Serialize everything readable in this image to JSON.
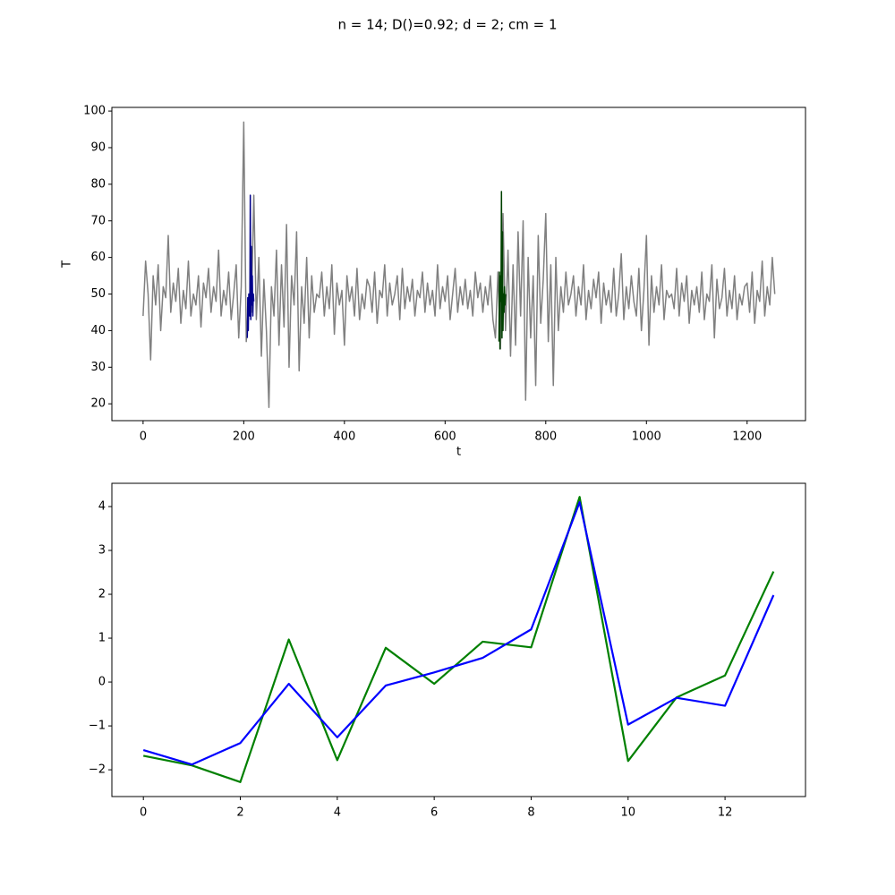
{
  "title": "n = 14; D()=0.92; d = 2; cm = 1",
  "chart_data": [
    {
      "type": "line",
      "xlabel": "t",
      "ylabel": "T",
      "xlim": [
        -62,
        1316
      ],
      "ylim": [
        15.4,
        101
      ],
      "xticks": [
        0,
        200,
        400,
        600,
        800,
        1000,
        1200
      ],
      "yticks": [
        20,
        30,
        40,
        50,
        60,
        70,
        80,
        90,
        100
      ],
      "series": [
        {
          "color": "#808080",
          "x": [
            0,
            5,
            10,
            15,
            20,
            25,
            30,
            35,
            40,
            45,
            50,
            55,
            60,
            65,
            70,
            75,
            80,
            85,
            90,
            95,
            100,
            105,
            110,
            115,
            120,
            125,
            130,
            135,
            140,
            145,
            150,
            155,
            160,
            165,
            170,
            175,
            180,
            185,
            190,
            195,
            200,
            205,
            210,
            215,
            220,
            225,
            230,
            235,
            240,
            245,
            250,
            255,
            260,
            265,
            270,
            275,
            280,
            285,
            290,
            295,
            300,
            305,
            310,
            315,
            320,
            325,
            330,
            335,
            340,
            345,
            350,
            355,
            360,
            365,
            370,
            375,
            380,
            385,
            390,
            395,
            400,
            405,
            410,
            415,
            420,
            425,
            430,
            435,
            440,
            445,
            450,
            455,
            460,
            465,
            470,
            475,
            480,
            485,
            490,
            495,
            500,
            505,
            510,
            515,
            520,
            525,
            530,
            535,
            540,
            545,
            550,
            555,
            560,
            565,
            570,
            575,
            580,
            585,
            590,
            595,
            600,
            605,
            610,
            615,
            620,
            625,
            630,
            635,
            640,
            645,
            650,
            655,
            660,
            665,
            670,
            675,
            680,
            685,
            690,
            695,
            700,
            705,
            710,
            715,
            720,
            725,
            730,
            735,
            740,
            745,
            750,
            755,
            760,
            765,
            770,
            775,
            780,
            785,
            790,
            795,
            800,
            805,
            810,
            815,
            820,
            825,
            830,
            835,
            840,
            845,
            850,
            855,
            860,
            865,
            870,
            875,
            880,
            885,
            890,
            895,
            900,
            905,
            910,
            915,
            920,
            925,
            930,
            935,
            940,
            945,
            950,
            955,
            960,
            965,
            970,
            975,
            980,
            985,
            990,
            995,
            1000,
            1005,
            1010,
            1015,
            1020,
            1025,
            1030,
            1035,
            1040,
            1045,
            1050,
            1055,
            1060,
            1065,
            1070,
            1075,
            1080,
            1085,
            1090,
            1095,
            1100,
            1105,
            1110,
            1115,
            1120,
            1125,
            1130,
            1135,
            1140,
            1145,
            1150,
            1155,
            1160,
            1165,
            1170,
            1175,
            1180,
            1185,
            1190,
            1195,
            1200,
            1205,
            1210,
            1215,
            1220,
            1225,
            1230,
            1235,
            1240,
            1245,
            1250,
            1255
          ],
          "values": [
            44,
            59,
            50,
            32,
            55,
            47,
            58,
            40,
            52,
            49,
            66,
            45,
            53,
            48,
            57,
            42,
            51,
            46,
            59,
            44,
            50,
            47,
            55,
            41,
            53,
            49,
            57,
            45,
            52,
            48,
            62,
            44,
            51,
            47,
            56,
            43,
            50,
            58,
            38,
            52,
            97,
            37,
            49,
            45,
            77,
            43,
            60,
            33,
            54,
            40,
            19,
            52,
            44,
            62,
            36,
            58,
            41,
            69,
            30,
            55,
            47,
            67,
            29,
            52,
            42,
            60,
            38,
            55,
            45,
            50,
            49,
            56,
            44,
            52,
            46,
            58,
            39,
            53,
            47,
            51,
            36,
            55,
            48,
            52,
            44,
            57,
            43,
            50,
            46,
            54,
            52,
            45,
            56,
            42,
            51,
            49,
            58,
            44,
            53,
            47,
            50,
            55,
            43,
            57,
            46,
            52,
            48,
            54,
            44,
            51,
            49,
            56,
            45,
            53,
            47,
            51,
            44,
            58,
            46,
            52,
            48,
            55,
            43,
            50,
            57,
            45,
            52,
            47,
            54,
            46,
            51,
            44,
            56,
            49,
            53,
            45,
            52,
            47,
            55,
            43,
            38,
            56,
            35,
            72,
            40,
            62,
            33,
            58,
            36,
            67,
            44,
            70,
            21,
            60,
            38,
            55,
            25,
            66,
            42,
            54,
            72,
            37,
            58,
            25,
            60,
            40,
            52,
            45,
            56,
            47,
            50,
            55,
            44,
            52,
            47,
            58,
            43,
            51,
            46,
            54,
            49,
            56,
            42,
            53,
            47,
            51,
            45,
            57,
            44,
            50,
            61,
            43,
            52,
            46,
            55,
            48,
            44,
            57,
            40,
            51,
            66,
            36,
            55,
            45,
            52,
            47,
            58,
            43,
            51,
            49,
            50,
            46,
            57,
            44,
            53,
            48,
            55,
            42,
            51,
            47,
            52,
            45,
            56,
            43,
            50,
            48,
            58,
            38,
            54,
            46,
            49,
            57,
            44,
            51,
            46,
            55,
            43,
            50,
            47,
            52,
            53,
            45,
            56,
            42,
            51,
            48,
            59,
            44,
            52,
            47,
            60,
            50
          ]
        },
        {
          "color": "#00008b",
          "x": [
            207,
            208,
            209,
            210,
            211,
            212,
            213,
            214,
            215,
            216,
            217,
            218,
            219,
            220
          ],
          "values": [
            38,
            49,
            40,
            50,
            45,
            44,
            77,
            43,
            63,
            47,
            55,
            44,
            50,
            48
          ]
        },
        {
          "color": "#004000",
          "x": [
            707,
            708,
            709,
            710,
            711,
            712,
            713,
            714,
            715,
            716,
            717,
            718,
            719,
            720
          ],
          "values": [
            37,
            56,
            35,
            55,
            48,
            78,
            38,
            67,
            40,
            50,
            45,
            52,
            47,
            50
          ]
        }
      ]
    },
    {
      "type": "line",
      "xlim": [
        -0.65,
        13.66
      ],
      "ylim": [
        -2.61,
        4.53
      ],
      "xticks": [
        0,
        2,
        4,
        6,
        8,
        10,
        12
      ],
      "yticks": [
        {
          "value": -2,
          "label": "−2"
        },
        {
          "value": -1,
          "label": "−1"
        },
        0,
        1,
        2,
        3,
        4
      ],
      "x": [
        0,
        1,
        2,
        3,
        4,
        5,
        6,
        7,
        8,
        9,
        10,
        11,
        12,
        13
      ],
      "series": [
        {
          "color": "#008000",
          "values": [
            -1.68,
            -1.9,
            -2.28,
            0.97,
            -1.78,
            0.78,
            -0.04,
            0.92,
            0.79,
            4.22,
            -1.8,
            -0.35,
            0.15,
            2.52
          ]
        },
        {
          "color": "#0000ff",
          "values": [
            -1.55,
            -1.88,
            -1.39,
            -0.04,
            -1.26,
            -0.08,
            0.22,
            0.55,
            1.2,
            4.1,
            -0.97,
            -0.36,
            -0.54,
            1.98
          ]
        }
      ]
    }
  ]
}
